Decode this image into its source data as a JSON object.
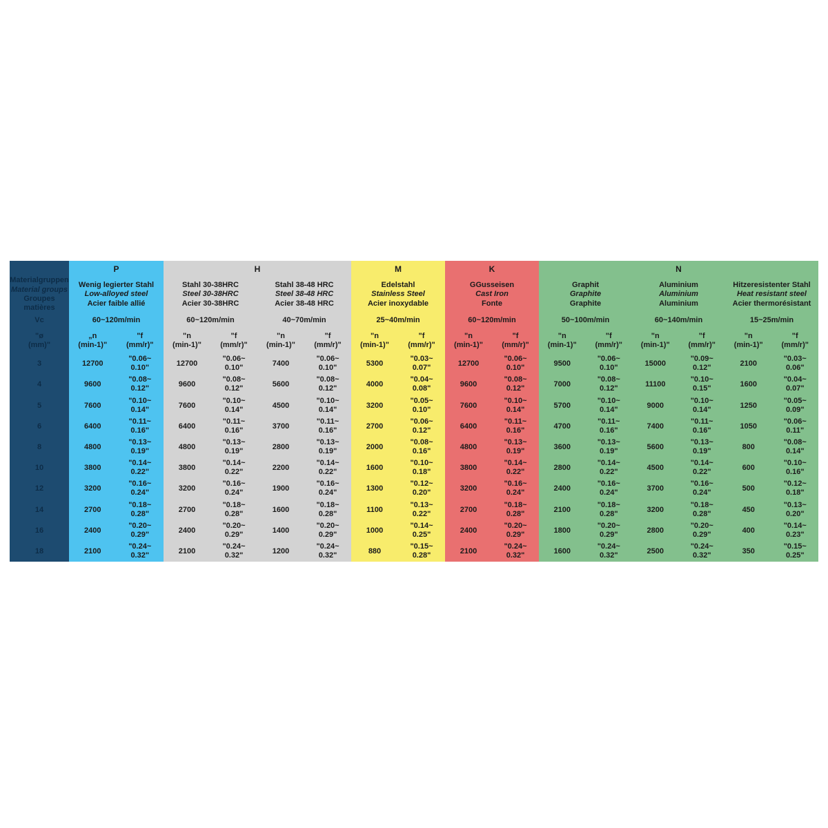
{
  "page": {
    "background": "#ffffff"
  },
  "table": {
    "text_color": "#1b1b1b",
    "label_column": {
      "background": "#1d4b70",
      "text_color": "#0d2c47",
      "title_lines": [
        "Materialgruppen",
        "Material groups",
        "Groupes matières"
      ],
      "vc_label": "Vc",
      "diameter_header": "\"ø\n(mm)\"",
      "diameters": [
        "3",
        "4",
        "5",
        "6",
        "8",
        "10",
        "12",
        "14",
        "16",
        "18"
      ]
    },
    "groups": [
      {
        "letter": "P",
        "color": "#4ec3f0",
        "columns": [
          {
            "names": [
              "Wenig legierter Stahl",
              "Low-alloyed steel",
              "Acier faible allié"
            ],
            "speed": "60~120m/min",
            "n_header": "„n\n(min-1)\"",
            "f_header": "\"f\n(mm/r)\"",
            "rows": [
              [
                "12700",
                "\"0.06~\n0.10\""
              ],
              [
                "9600",
                "\"0.08~\n0.12\""
              ],
              [
                "7600",
                "\"0.10~\n0.14\""
              ],
              [
                "6400",
                "\"0.11~\n0.16\""
              ],
              [
                "4800",
                "\"0.13~\n0.19\""
              ],
              [
                "3800",
                "\"0.14~\n0.22\""
              ],
              [
                "3200",
                "\"0.16~\n0.24\""
              ],
              [
                "2700",
                "\"0.18~\n0.28\""
              ],
              [
                "2400",
                "\"0.20~\n0.29\""
              ],
              [
                "2100",
                "\"0.24~\n0.32\""
              ]
            ]
          }
        ]
      },
      {
        "letter": "H",
        "color": "#d3d3d3",
        "columns": [
          {
            "names": [
              "Stahl 30-38HRC",
              "Steel 30-38HRC",
              "Acier 30-38HRC"
            ],
            "speed": "60~120m/min",
            "n_header": "\"n\n(min-1)\"",
            "f_header": "\"f\n(mm/r)\"",
            "rows": [
              [
                "12700",
                "\"0.06~\n0.10\""
              ],
              [
                "9600",
                "\"0.08~\n0.12\""
              ],
              [
                "7600",
                "\"0.10~\n0.14\""
              ],
              [
                "6400",
                "\"0.11~\n0.16\""
              ],
              [
                "4800",
                "\"0.13~\n0.19\""
              ],
              [
                "3800",
                "\"0.14~\n0.22\""
              ],
              [
                "3200",
                "\"0.16~\n0.24\""
              ],
              [
                "2700",
                "\"0.18~\n0.28\""
              ],
              [
                "2400",
                "\"0.20~\n0.29\""
              ],
              [
                "2100",
                "\"0.24~\n0.32\""
              ]
            ]
          },
          {
            "names": [
              "Stahl 38-48 HRC",
              "Steel 38-48 HRC",
              "Acier 38-48 HRC"
            ],
            "speed": "40~70m/min",
            "n_header": "\"n\n(min-1)\"",
            "f_header": "\"f\n(mm/r)\"",
            "rows": [
              [
                "7400",
                "\"0.06~\n0.10\""
              ],
              [
                "5600",
                "\"0.08~\n0.12\""
              ],
              [
                "4500",
                "\"0.10~\n0.14\""
              ],
              [
                "3700",
                "\"0.11~\n0.16\""
              ],
              [
                "2800",
                "\"0.13~\n0.19\""
              ],
              [
                "2200",
                "\"0.14~\n0.22\""
              ],
              [
                "1900",
                "\"0.16~\n0.24\""
              ],
              [
                "1600",
                "\"0.18~\n0.28\""
              ],
              [
                "1400",
                "\"0.20~\n0.29\""
              ],
              [
                "1200",
                "\"0.24~\n0.32\""
              ]
            ]
          }
        ]
      },
      {
        "letter": "M",
        "color": "#f8ec6c",
        "columns": [
          {
            "names": [
              "Edelstahl",
              "Stainless Steel",
              "Acier inoxydable"
            ],
            "speed": "25~40m/min",
            "n_header": "\"n\n(min-1)\"",
            "f_header": "\"f\n(mm/r)\"",
            "rows": [
              [
                "5300",
                "\"0.03~\n0.07\""
              ],
              [
                "4000",
                "\"0.04~\n0.08\""
              ],
              [
                "3200",
                "\"0.05~\n0.10\""
              ],
              [
                "2700",
                "\"0.06~\n0.12\""
              ],
              [
                "2000",
                "\"0.08~\n0.16\""
              ],
              [
                "1600",
                "\"0.10~\n0.18\""
              ],
              [
                "1300",
                "\"0.12~\n0.20\""
              ],
              [
                "1100",
                "\"0.13~\n0.22\""
              ],
              [
                "1000",
                "\"0.14~\n0.25\""
              ],
              [
                "880",
                "\"0.15~\n0.28\""
              ]
            ]
          }
        ]
      },
      {
        "letter": "K",
        "color": "#e97070",
        "columns": [
          {
            "names": [
              "GGusseisen",
              "Cast Iron",
              "Fonte"
            ],
            "speed": "60~120m/min",
            "n_header": "\"n\n(min-1)\"",
            "f_header": "\"f\n(mm/r)\"",
            "rows": [
              [
                "12700",
                "\"0.06~\n0.10\""
              ],
              [
                "9600",
                "\"0.08~\n0.12\""
              ],
              [
                "7600",
                "\"0.10~\n0.14\""
              ],
              [
                "6400",
                "\"0.11~\n0.16\""
              ],
              [
                "4800",
                "\"0.13~\n0.19\""
              ],
              [
                "3800",
                "\"0.14~\n0.22\""
              ],
              [
                "3200",
                "\"0.16~\n0.24\""
              ],
              [
                "2700",
                "\"0.18~\n0.28\""
              ],
              [
                "2400",
                "\"0.20~\n0.29\""
              ],
              [
                "2100",
                "\"0.24~\n0.32\""
              ]
            ]
          }
        ]
      },
      {
        "letter": "N",
        "color": "#83c08d",
        "columns": [
          {
            "names": [
              "Graphit",
              "Graphite",
              "Graphite"
            ],
            "speed": "50~100m/min",
            "n_header": "\"n\n(min-1)\"",
            "f_header": "\"f\n(mm/r)\"",
            "rows": [
              [
                "9500",
                "\"0.06~\n0.10\""
              ],
              [
                "7000",
                "\"0.08~\n0.12\""
              ],
              [
                "5700",
                "\"0.10~\n0.14\""
              ],
              [
                "4700",
                "\"0.11~\n0.16\""
              ],
              [
                "3600",
                "\"0.13~\n0.19\""
              ],
              [
                "2800",
                "\"0.14~\n0.22\""
              ],
              [
                "2400",
                "\"0.16~\n0.24\""
              ],
              [
                "2100",
                "\"0.18~\n0.28\""
              ],
              [
                "1800",
                "\"0.20~\n0.29\""
              ],
              [
                "1600",
                "\"0.24~\n0.32\""
              ]
            ]
          },
          {
            "names": [
              "Aluminium",
              "Aluminium",
              "Aluminium"
            ],
            "speed": "60~140m/min",
            "n_header": "\"n\n(min-1)\"",
            "f_header": "\"f\n(mm/r)\"",
            "rows": [
              [
                "15000",
                "\"0.09~\n0.12\""
              ],
              [
                "11100",
                "\"0.10~\n0.15\""
              ],
              [
                "9000",
                "\"0.10~\n0.14\""
              ],
              [
                "7400",
                "\"0.11~\n0.16\""
              ],
              [
                "5600",
                "\"0.13~\n0.19\""
              ],
              [
                "4500",
                "\"0.14~\n0.22\""
              ],
              [
                "3700",
                "\"0.16~\n0.24\""
              ],
              [
                "3200",
                "\"0.18~\n0.28\""
              ],
              [
                "2800",
                "\"0.20~\n0.29\""
              ],
              [
                "2500",
                "\"0.24~\n0.32\""
              ]
            ]
          },
          {
            "names": [
              "Hitzeresistenter Stahl",
              "Heat resistant steel",
              "Acier thermorésistant"
            ],
            "speed": "15~25m/min",
            "n_header": "\"n\n(min-1)\"",
            "f_header": "\"f\n(mm/r)\"",
            "rows": [
              [
                "2100",
                "\"0.03~\n0.06\""
              ],
              [
                "1600",
                "\"0.04~\n0.07\""
              ],
              [
                "1250",
                "\"0.05~\n0.09\""
              ],
              [
                "1050",
                "\"0.06~\n0.11\""
              ],
              [
                "800",
                "\"0.08~\n0.14\""
              ],
              [
                "600",
                "\"0.10~\n0.16\""
              ],
              [
                "500",
                "\"0.12~\n0.18\""
              ],
              [
                "450",
                "\"0.13~\n0.20\""
              ],
              [
                "400",
                "\"0.14~\n0.23\""
              ],
              [
                "350",
                "\"0.15~\n0.25\""
              ]
            ]
          }
        ]
      }
    ]
  }
}
